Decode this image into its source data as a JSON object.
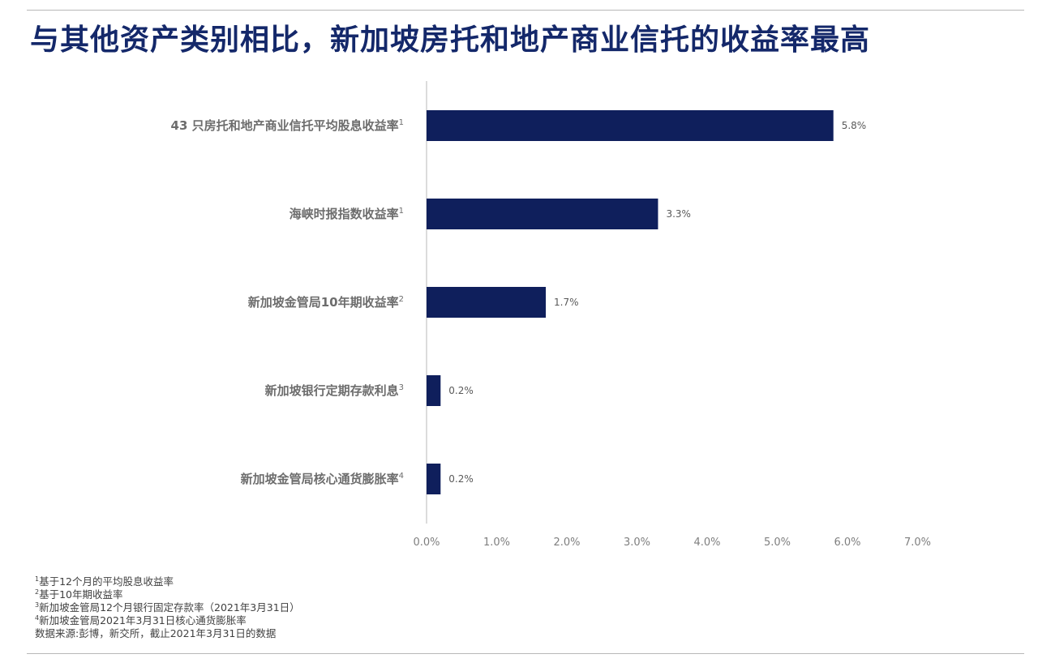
{
  "title": "与其他资产类别相比，新加坡房托和地产商业信托的收益率最高",
  "chart_data": {
    "type": "bar",
    "orientation": "horizontal",
    "categories": [
      "43 只房托和地产商业信托平均股息收益率",
      "海峡时报指数收益率",
      "新加坡金管局10年期收益率",
      "新加坡银行定期存款利息",
      "新加坡金管局核心通货膨胀率"
    ],
    "category_footnotes": [
      "1",
      "1",
      "2",
      "3",
      "4"
    ],
    "values": [
      5.8,
      3.3,
      1.7,
      0.2,
      0.2
    ],
    "value_labels": [
      "5.8%",
      "3.3%",
      "1.7%",
      "0.2%",
      "0.2%"
    ],
    "xlim": [
      0,
      7
    ],
    "x_ticks": [
      "0.0%",
      "1.0%",
      "2.0%",
      "3.0%",
      "4.0%",
      "5.0%",
      "6.0%",
      "7.0%"
    ],
    "grid": false,
    "bar_color": "#0f1f5c"
  },
  "footnotes": [
    {
      "mark": "1",
      "text": "基于12个月的平均股息收益率"
    },
    {
      "mark": "2",
      "text": "基于10年期收益率"
    },
    {
      "mark": "3",
      "text": "新加坡金管局12个月银行固定存款率（2021年3月31日）"
    },
    {
      "mark": "4",
      "text": "新加坡金管局2021年3月31日核心通货膨胀率"
    },
    {
      "mark": "",
      "text": "数据来源:彭博，新交所，截止2021年3月31日的数据"
    }
  ]
}
